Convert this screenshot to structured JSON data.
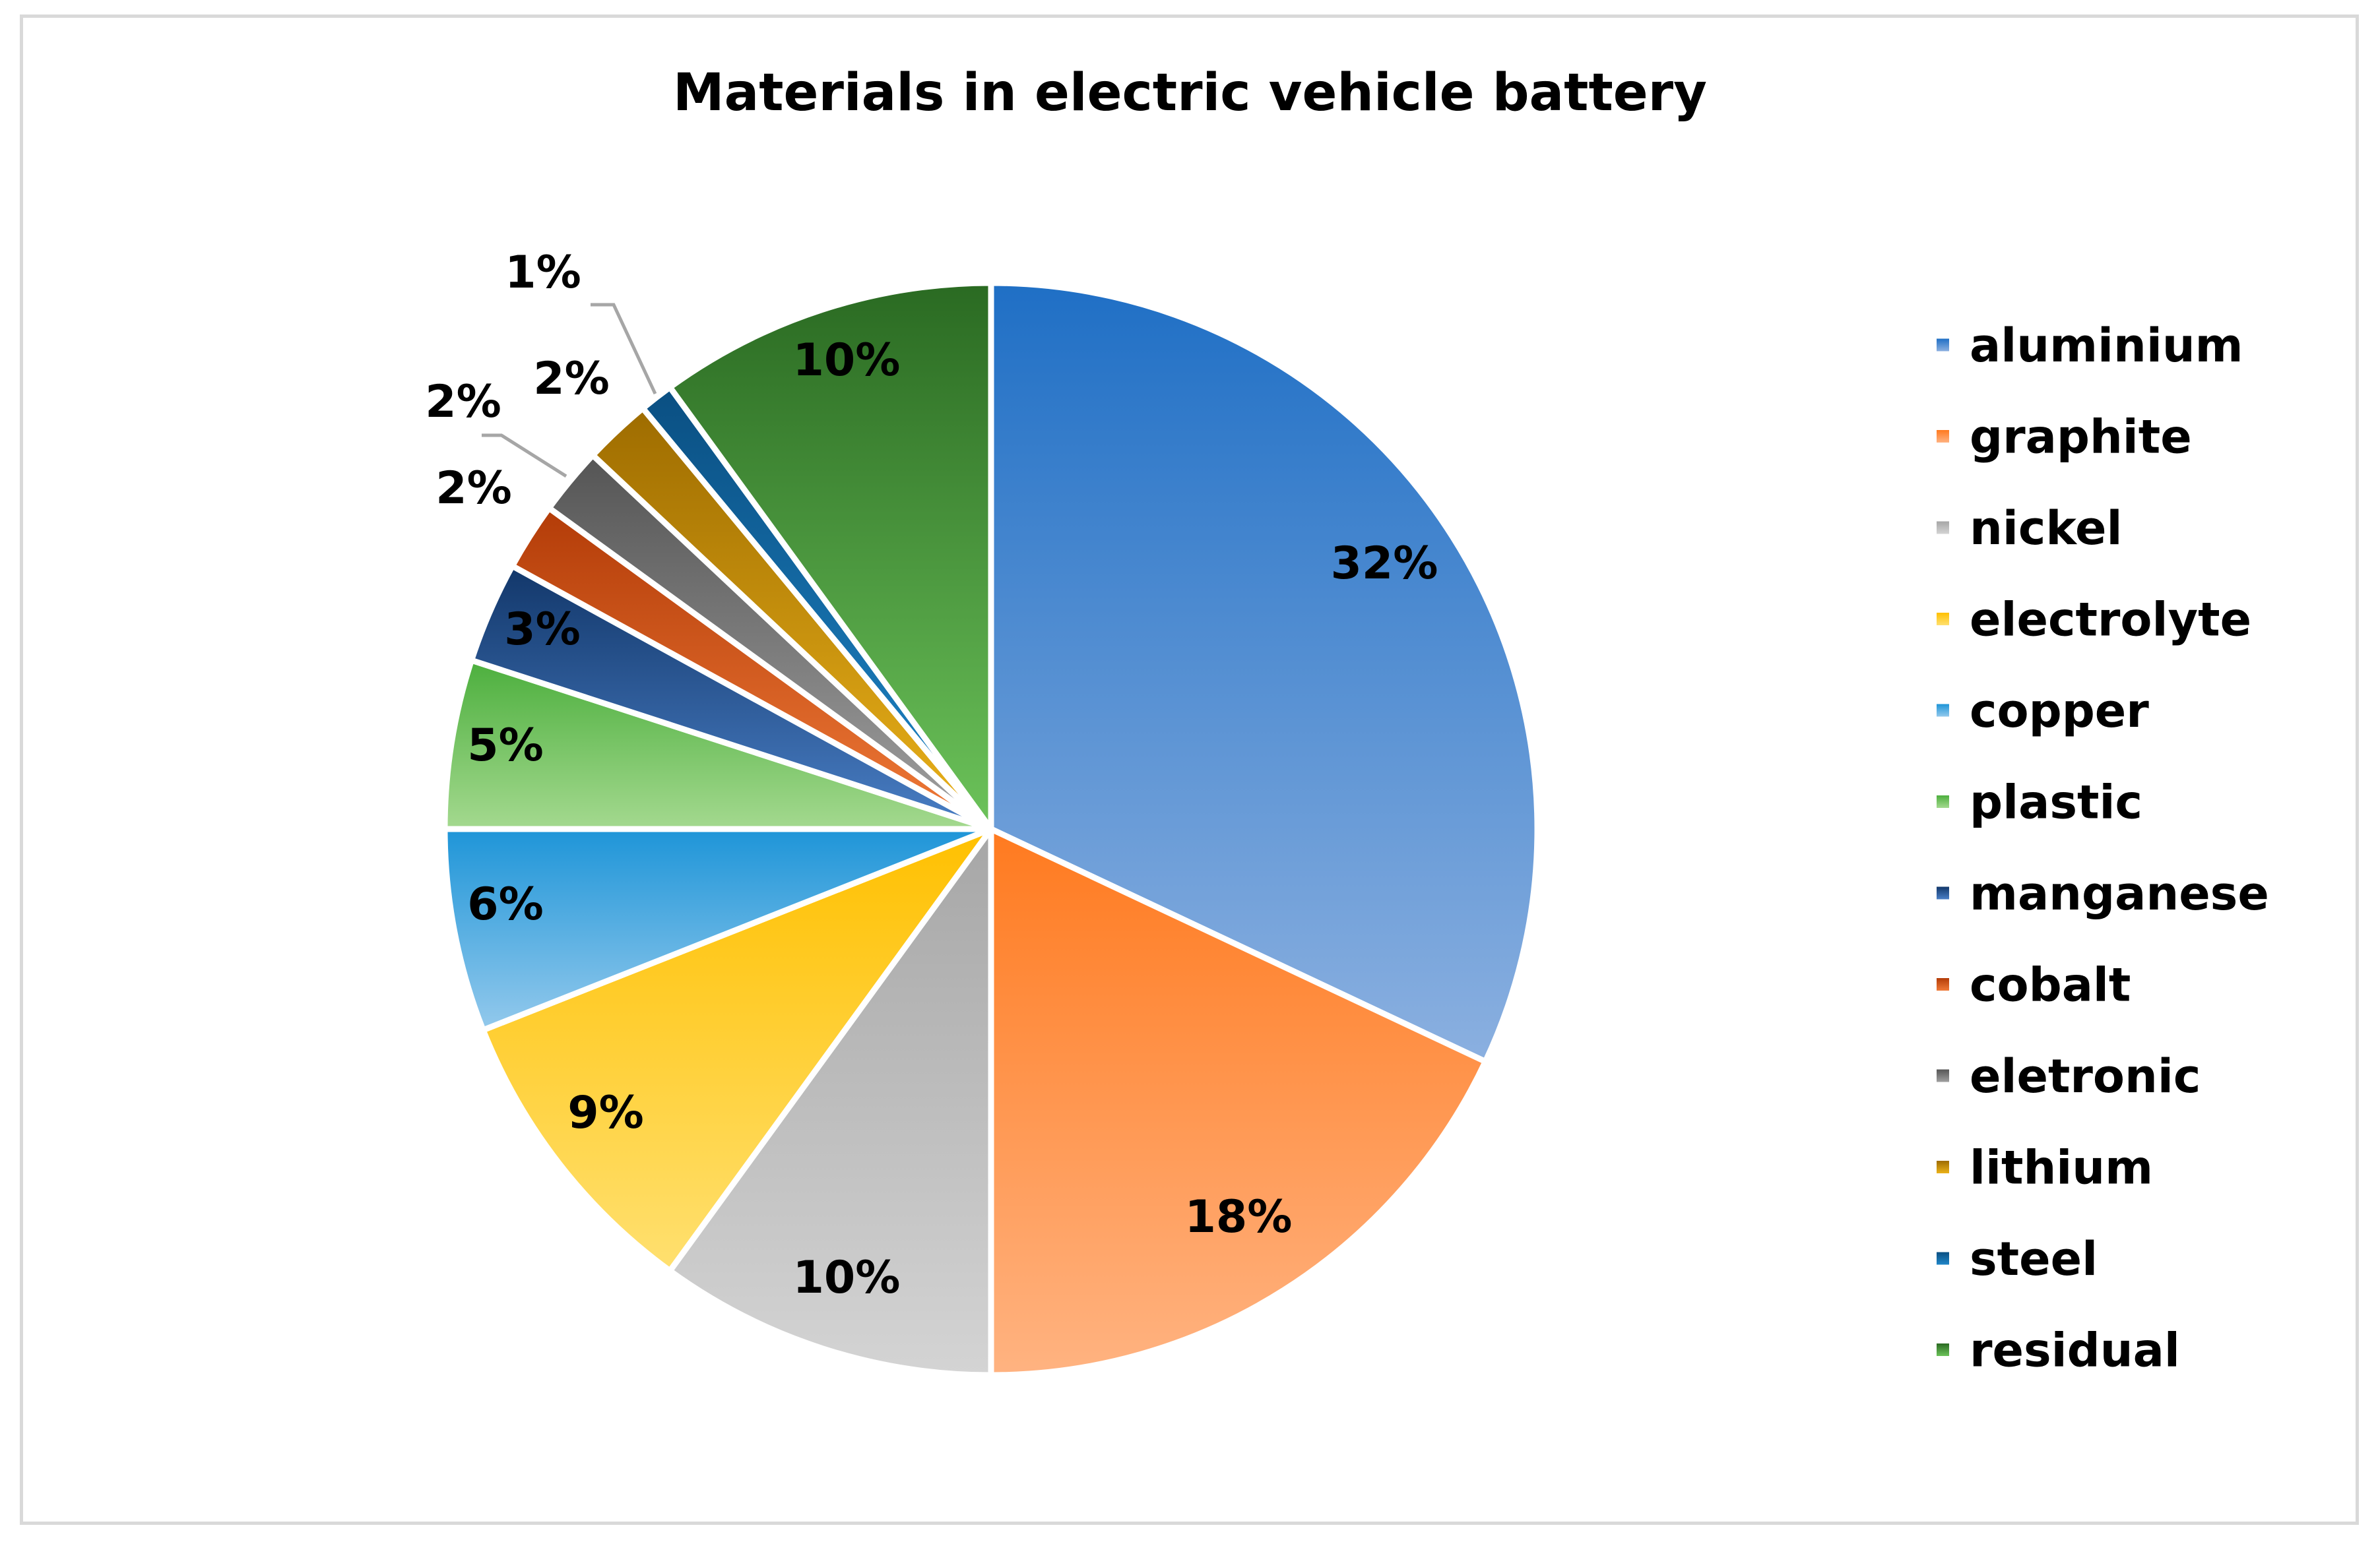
{
  "chart_data": {
    "type": "pie",
    "title": "Materials in electric vehicle battery",
    "legend_position": "right",
    "start_angle_deg": 0,
    "direction": "clockwise",
    "slices": [
      {
        "name": "aluminium",
        "value": 32,
        "label": "32%",
        "color": "#4a7fcf",
        "color_top": "#1f6fc5",
        "color_bottom": "#8bb0e0"
      },
      {
        "name": "graphite",
        "value": 18,
        "label": "18%",
        "color": "#ff8f45",
        "color_top": "#ff7a1f",
        "color_bottom": "#ffb381"
      },
      {
        "name": "nickel",
        "value": 10,
        "label": "10%",
        "color": "#b5b5b5",
        "color_top": "#a6a6a6",
        "color_bottom": "#d4d4d4"
      },
      {
        "name": "electrolyte",
        "value": 9,
        "label": "9%",
        "color": "#ffc82e",
        "color_top": "#ffc000",
        "color_bottom": "#ffe070"
      },
      {
        "name": "copper",
        "value": 6,
        "label": "6%",
        "color": "#4aa8e0",
        "color_top": "#1e95d8",
        "color_bottom": "#93c9ec"
      },
      {
        "name": "plastic",
        "value": 5,
        "label": "5%",
        "color": "#6dbb58",
        "color_top": "#4caf3d",
        "color_bottom": "#a4d98f"
      },
      {
        "name": "manganese",
        "value": 3,
        "label": "3%",
        "color": "#2e5f9e",
        "color_top": "#12376a",
        "color_bottom": "#4a7fc6"
      },
      {
        "name": "cobalt",
        "value": 2,
        "label": "2%",
        "color": "#d9561c",
        "color_top": "#b33c08",
        "color_bottom": "#f07a38"
      },
      {
        "name": "eletronic",
        "value": 2,
        "label": "2%",
        "color": "#7a7a7a",
        "color_top": "#555555",
        "color_bottom": "#a0a0a0"
      },
      {
        "name": "lithium",
        "value": 2,
        "label": "2%",
        "color": "#c89000",
        "color_top": "#9e6c00",
        "color_bottom": "#ebb21a"
      },
      {
        "name": "steel",
        "value": 1,
        "label": "1%",
        "color": "#0f6aa8",
        "color_top": "#0a4f82",
        "color_bottom": "#1f86c8"
      },
      {
        "name": "residual",
        "value": 10,
        "label": "10%",
        "color": "#3f8f35",
        "color_top": "#2a6a22",
        "color_bottom": "#6cc35a"
      }
    ]
  }
}
